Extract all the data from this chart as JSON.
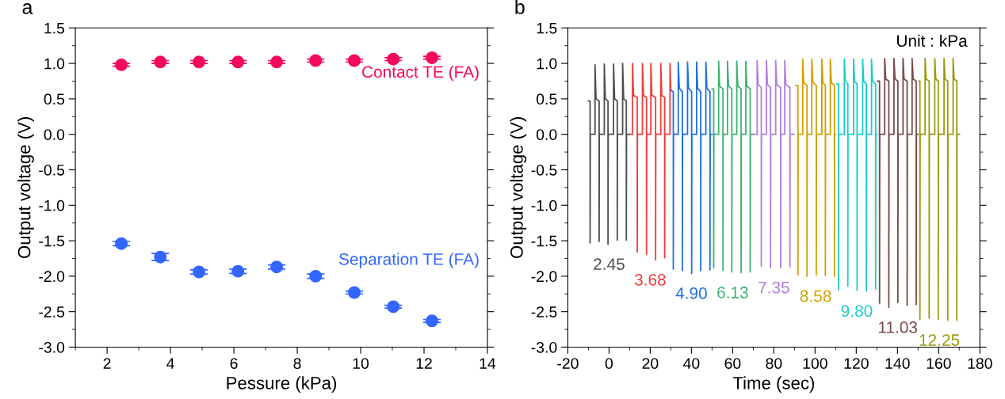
{
  "chart_data": [
    {
      "type": "scatter",
      "title": "a",
      "xlabel": "Pessure (kPa)",
      "ylabel": "Output voltage (V)",
      "marker": "circle",
      "grid": false,
      "legend": false,
      "x": [
        2.45,
        3.68,
        4.9,
        6.13,
        7.35,
        8.58,
        9.8,
        11.03,
        12.25
      ],
      "xlim": [
        1,
        14
      ],
      "xticks": [
        2,
        4,
        6,
        8,
        10,
        12,
        14
      ],
      "ylim": [
        -3,
        1.5
      ],
      "yticks": [
        {
          "value": -3,
          "label": "-3.0"
        },
        {
          "value": -2.5,
          "label": "-2.5"
        },
        {
          "value": -2,
          "label": "-2.0"
        },
        {
          "value": -1.5,
          "label": "-1.5"
        },
        {
          "value": -1,
          "label": "-1.0"
        },
        {
          "value": -0.5,
          "label": "-0.5"
        },
        {
          "value": 0,
          "label": "0.0"
        },
        {
          "value": 0.5,
          "label": "0.5"
        },
        {
          "value": 1,
          "label": "1.0"
        },
        {
          "value": 1.5,
          "label": "1.5"
        }
      ],
      "series": [
        {
          "name": "Contact TE (FA)",
          "color": "#f5085e",
          "values": [
            0.98,
            1.02,
            1.02,
            1.02,
            1.02,
            1.04,
            1.04,
            1.06,
            1.08
          ],
          "errors": [
            0.02,
            0.02,
            0.02,
            0.02,
            0.02,
            0.02,
            0.02,
            0.02,
            0.02
          ]
        },
        {
          "name": "Separation TE (FA)",
          "color": "#3366ff",
          "values": [
            -1.54,
            -1.73,
            -1.94,
            -1.93,
            -1.87,
            -2.0,
            -2.23,
            -2.43,
            -2.63
          ],
          "errors": [
            0.03,
            0.05,
            0.03,
            0.03,
            0.03,
            0.03,
            0.02,
            0.02,
            0.02
          ]
        }
      ]
    },
    {
      "type": "line",
      "title": "b",
      "xlabel": "Time (sec)",
      "ylabel": "Output voltage (V)",
      "grid": false,
      "legend": false,
      "marker": "none",
      "line_style": "solid",
      "annotations": [
        "Unit : kPa"
      ],
      "xlim": [
        -20,
        180
      ],
      "xticks": [
        -20,
        0,
        20,
        40,
        60,
        80,
        100,
        120,
        140,
        160,
        180
      ],
      "ylim": [
        -3,
        1.5
      ],
      "yticks": [
        {
          "value": -3,
          "label": "-3.0"
        },
        {
          "value": -2.5,
          "label": "-2.5"
        },
        {
          "value": -2,
          "label": "-2.0"
        },
        {
          "value": -1.5,
          "label": "-1.5"
        },
        {
          "value": -1,
          "label": "-1.0"
        },
        {
          "value": -0.5,
          "label": "-0.5"
        },
        {
          "value": 0,
          "label": "0.0"
        },
        {
          "value": 0.5,
          "label": "0.5"
        },
        {
          "value": 1,
          "label": "1.0"
        },
        {
          "value": 1.5,
          "label": "1.5"
        }
      ],
      "series": [
        {
          "name": "2.45",
          "color": "#4d4d4d",
          "x": [
            -10,
            -9.2,
            -9.2,
            -9.1,
            -6.8,
            -6.8,
            -6.3,
            -4.8,
            -4.8,
            -4.7,
            -2.3,
            -2.3,
            -1.8,
            -0.5,
            -0.5,
            -0.4,
            2.2,
            2.2,
            2.7,
            4.0,
            4.0,
            4.1,
            6.6,
            6.6,
            7.1,
            8.4,
            8.4,
            8.5,
            10
          ],
          "values": [
            0.47,
            0.47,
            -1.53,
            0,
            0,
            0.98,
            0.5,
            0.47,
            -1.51,
            0,
            0,
            0.99,
            0.5,
            0.47,
            -1.55,
            0,
            0,
            0.99,
            0.5,
            0.47,
            -1.49,
            0,
            0,
            1.0,
            0.5,
            0.47,
            -1.49,
            0,
            0
          ]
        },
        {
          "name": "3.68",
          "color": "#f03c3c",
          "x": [
            10,
            11.4,
            11.4,
            11.9,
            13.7,
            13.7,
            13.8,
            16.2,
            16.2,
            16.7,
            18.2,
            18.2,
            18.3,
            20.3,
            20.3,
            20.8,
            22.6,
            22.6,
            22.7,
            25.1,
            25.1,
            25.6,
            27.0,
            27.0,
            27.1,
            29.6,
            29.6,
            30
          ],
          "values": [
            0,
            0,
            1.0,
            0.55,
            0.52,
            -1.66,
            0,
            0,
            1.0,
            0.55,
            0.52,
            -1.69,
            0,
            0,
            1.0,
            0.55,
            0.52,
            -1.77,
            0,
            0,
            1.0,
            0.55,
            0.52,
            -1.74,
            0,
            0,
            1.0,
            0.62
          ]
        },
        {
          "name": "4.90",
          "color": "#1f6fe0",
          "x": [
            30,
            31.2,
            31.2,
            31.3,
            33.6,
            33.6,
            34.1,
            35.6,
            35.6,
            35.7,
            38.1,
            38.1,
            38.6,
            40.1,
            40.1,
            40.2,
            42.5,
            42.5,
            43.0,
            44.5,
            44.5,
            44.6,
            47.0,
            47.0,
            47.5,
            49.0,
            49.0,
            49.1,
            50
          ],
          "values": [
            0.62,
            0.6,
            -1.9,
            0,
            0,
            1.02,
            0.65,
            0.6,
            -1.92,
            0,
            0,
            1.02,
            0.65,
            0.6,
            -1.96,
            0,
            0,
            1.02,
            0.65,
            0.6,
            -1.92,
            0,
            0,
            1.02,
            0.65,
            0.6,
            -1.91,
            0,
            0
          ]
        },
        {
          "name": "6.13",
          "color": "#3cb371",
          "x": [
            50,
            50.8,
            50.8,
            50.9,
            53.2,
            53.2,
            53.7,
            55.3,
            55.3,
            55.4,
            57.5,
            57.5,
            58.0,
            59.6,
            59.6,
            59.7,
            62.0,
            62.0,
            62.5,
            64.1,
            64.1,
            64.2,
            66.4,
            66.4,
            66.9,
            68.5,
            68.5,
            68.6,
            70
          ],
          "values": [
            0.64,
            0.64,
            -1.88,
            0,
            0,
            1.03,
            0.68,
            0.64,
            -1.92,
            0,
            0,
            1.03,
            0.68,
            0.64,
            -1.94,
            0,
            0,
            1.03,
            0.68,
            0.64,
            -1.95,
            0,
            0,
            1.03,
            0.68,
            0.64,
            -1.94,
            0,
            0
          ]
        },
        {
          "name": "7.35",
          "color": "#b07ee0",
          "x": [
            70,
            71.9,
            71.9,
            72.4,
            73.9,
            73.9,
            74.0,
            76.4,
            76.4,
            76.9,
            78.4,
            78.4,
            78.5,
            80.9,
            80.9,
            81.4,
            83.3,
            83.3,
            83.4,
            85.3,
            85.3,
            85.8,
            87.8,
            87.8,
            87.9,
            90
          ],
          "values": [
            0,
            0,
            1.04,
            0.7,
            0.66,
            -1.86,
            0,
            0,
            1.04,
            0.7,
            0.66,
            -1.88,
            0,
            0,
            1.04,
            0.7,
            0.66,
            -1.88,
            0,
            0,
            1.04,
            0.7,
            0.66,
            -1.87,
            0,
            0
          ]
        },
        {
          "name": "8.58",
          "color": "#d4a000",
          "x": [
            90.6,
            91.7,
            91.7,
            91.8,
            94.0,
            94.0,
            94.5,
            96.1,
            96.1,
            96.2,
            98.4,
            98.4,
            98.9,
            100.6,
            100.6,
            100.7,
            103.3,
            103.3,
            103.8,
            105.0,
            105.0,
            105.1,
            107.4,
            107.4,
            107.9,
            109.4,
            109.4,
            109.5,
            110
          ],
          "values": [
            0.69,
            0.69,
            -1.98,
            0,
            0,
            1.06,
            0.73,
            0.69,
            -2.0,
            0,
            0,
            1.06,
            0.73,
            0.69,
            -1.98,
            0,
            0,
            1.06,
            0.73,
            0.69,
            -1.99,
            0,
            0,
            1.06,
            0.73,
            0.69,
            -2.0,
            0,
            0
          ]
        },
        {
          "name": "9.80",
          "color": "#1ccccc",
          "x": [
            110.5,
            111.4,
            111.4,
            111.5,
            114.2,
            114.2,
            114.7,
            115.9,
            115.9,
            116.0,
            118.7,
            118.7,
            119.2,
            120.4,
            120.4,
            120.5,
            123.1,
            123.1,
            123.6,
            124.9,
            124.9,
            125.0,
            127.4,
            127.4,
            127.9,
            129.4,
            129.4,
            129.5,
            130
          ],
          "values": [
            0.71,
            0.71,
            -2.19,
            0,
            0,
            1.06,
            0.75,
            0.71,
            -2.14,
            0,
            0,
            1.06,
            0.75,
            0.71,
            -2.2,
            0,
            0,
            1.06,
            0.75,
            0.71,
            -2.21,
            0,
            0,
            1.06,
            0.75,
            0.71,
            -2.18,
            0,
            0
          ]
        },
        {
          "name": "11.03",
          "color": "#7a4a4a",
          "x": [
            130.3,
            131.3,
            131.3,
            131.4,
            133.8,
            133.8,
            134.3,
            135.8,
            135.8,
            135.9,
            138.3,
            138.3,
            138.8,
            140.2,
            140.2,
            140.3,
            142.7,
            142.7,
            143.2,
            144.7,
            144.7,
            144.8,
            147.1,
            147.1,
            147.6,
            149.1,
            149.1,
            149.2,
            150
          ],
          "values": [
            0.75,
            0.75,
            -2.38,
            0,
            0,
            1.07,
            0.78,
            0.75,
            -2.44,
            0,
            0,
            1.07,
            0.78,
            0.75,
            -2.37,
            0,
            0,
            1.07,
            0.78,
            0.75,
            -2.41,
            0,
            0,
            1.07,
            0.78,
            0.75,
            -2.4,
            0,
            0
          ]
        },
        {
          "name": "12.25",
          "color": "#9a9a10",
          "x": [
            150.5,
            150.9,
            150.9,
            151.0,
            153.4,
            153.4,
            153.9,
            155.4,
            155.4,
            155.5,
            158.1,
            158.1,
            158.6,
            159.8,
            159.8,
            159.9,
            162.6,
            162.6,
            163.1,
            164.4,
            164.4,
            164.5,
            167.0,
            167.0,
            167.5,
            168.8,
            168.8,
            168.9,
            170.1
          ],
          "values": [
            0.75,
            0.75,
            -2.61,
            0,
            0,
            1.07,
            0.78,
            0.75,
            -2.59,
            0,
            0,
            1.07,
            0.78,
            0.75,
            -2.61,
            0,
            0,
            1.07,
            0.78,
            0.75,
            -2.62,
            0,
            0,
            1.07,
            0.78,
            0.75,
            -2.62,
            0,
            0
          ]
        }
      ]
    }
  ]
}
